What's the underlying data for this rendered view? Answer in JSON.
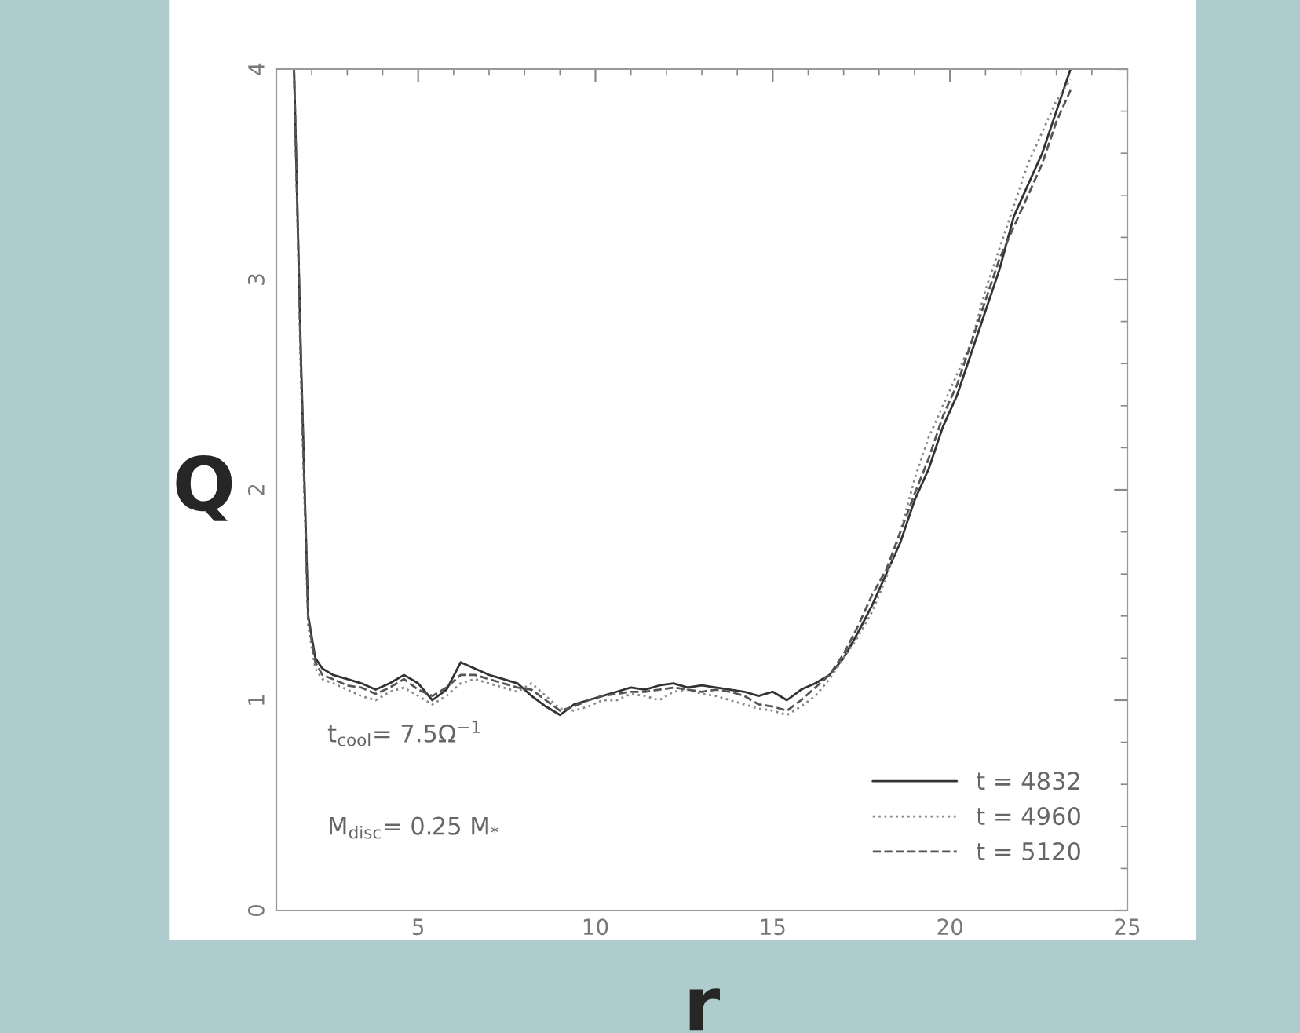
{
  "chart_data": {
    "type": "line",
    "xlabel": "r",
    "ylabel": "Q",
    "x": [
      1.5,
      1.7,
      1.9,
      2.1,
      2.3,
      2.6,
      3,
      3.4,
      3.8,
      4.2,
      4.6,
      5,
      5.4,
      5.8,
      6.2,
      6.6,
      7,
      7.4,
      7.8,
      8.2,
      8.6,
      9,
      9.4,
      9.8,
      10.2,
      10.6,
      11,
      11.4,
      11.8,
      12.2,
      12.6,
      13,
      13.4,
      13.8,
      14.2,
      14.6,
      15,
      15.4,
      15.8,
      16.2,
      16.6,
      17,
      17.4,
      17.8,
      18.2,
      18.6,
      19,
      19.4,
      19.8,
      20.2,
      20.6,
      21,
      21.4,
      21.8,
      22.2,
      22.6,
      23,
      23.4
    ],
    "series": [
      {
        "name": "t = 4832",
        "color": "#333333",
        "line_style": "solid",
        "values": [
          4.0,
          2.6,
          1.4,
          1.2,
          1.15,
          1.12,
          1.1,
          1.08,
          1.05,
          1.08,
          1.12,
          1.08,
          1.0,
          1.05,
          1.18,
          1.15,
          1.12,
          1.1,
          1.08,
          1.02,
          0.97,
          0.93,
          0.98,
          1.0,
          1.02,
          1.04,
          1.06,
          1.05,
          1.07,
          1.08,
          1.06,
          1.07,
          1.06,
          1.05,
          1.04,
          1.02,
          1.04,
          1.0,
          1.05,
          1.08,
          1.12,
          1.2,
          1.32,
          1.45,
          1.6,
          1.75,
          1.95,
          2.1,
          2.3,
          2.45,
          2.65,
          2.85,
          3.05,
          3.3,
          3.45,
          3.6,
          3.8,
          4.0
        ]
      },
      {
        "name": "t = 4960",
        "color": "#888888",
        "line_style": "dotted",
        "values": [
          4.0,
          2.5,
          1.35,
          1.15,
          1.1,
          1.08,
          1.05,
          1.02,
          1.0,
          1.04,
          1.06,
          1.02,
          0.98,
          1.02,
          1.08,
          1.1,
          1.08,
          1.06,
          1.04,
          1.08,
          1.02,
          0.96,
          0.95,
          0.97,
          1.0,
          1.0,
          1.03,
          1.02,
          1.0,
          1.04,
          1.05,
          1.03,
          1.02,
          1.0,
          0.98,
          0.96,
          0.95,
          0.93,
          0.97,
          1.02,
          1.1,
          1.2,
          1.3,
          1.42,
          1.58,
          1.8,
          2.05,
          2.25,
          2.4,
          2.55,
          2.7,
          2.95,
          3.15,
          3.35,
          3.55,
          3.7,
          3.85,
          3.95
        ]
      },
      {
        "name": "t = 5120",
        "color": "#555555",
        "line_style": "dashed",
        "values": [
          4.0,
          2.55,
          1.38,
          1.18,
          1.12,
          1.1,
          1.07,
          1.06,
          1.03,
          1.06,
          1.1,
          1.05,
          1.02,
          1.06,
          1.12,
          1.12,
          1.1,
          1.08,
          1.06,
          1.05,
          1.0,
          0.95,
          0.97,
          1.0,
          1.02,
          1.03,
          1.04,
          1.04,
          1.05,
          1.06,
          1.05,
          1.04,
          1.05,
          1.04,
          1.02,
          0.98,
          0.97,
          0.95,
          1.0,
          1.06,
          1.12,
          1.22,
          1.35,
          1.5,
          1.62,
          1.8,
          1.98,
          2.15,
          2.35,
          2.5,
          2.7,
          2.9,
          3.1,
          3.25,
          3.4,
          3.55,
          3.75,
          3.9
        ]
      }
    ],
    "xlim": [
      1,
      25
    ],
    "xticks": [
      5,
      10,
      15,
      20,
      25
    ],
    "ylim": [
      0,
      4
    ],
    "yticks": [
      0,
      1,
      2,
      3,
      4
    ],
    "legend": "bottom right",
    "grid": false,
    "annotations": [
      "t$_{cool}$= 7.5Ω$^{−1}$",
      "M$_{disc}$= 0.25 M$_{*}$"
    ]
  }
}
